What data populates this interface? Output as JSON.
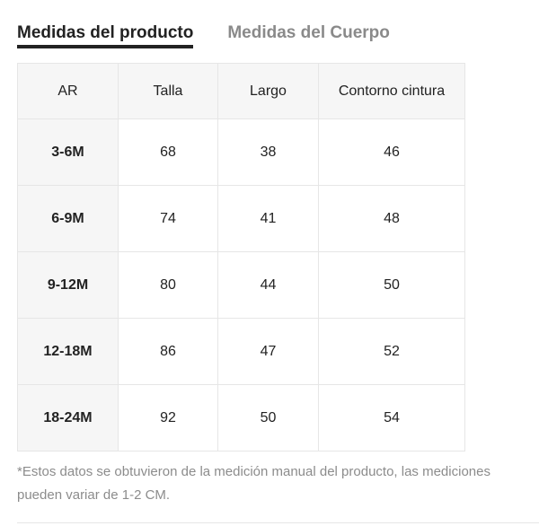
{
  "tabs": [
    {
      "label": "Medidas del producto",
      "active": true
    },
    {
      "label": "Medidas del Cuerpo",
      "active": false
    }
  ],
  "table": {
    "headers": [
      "AR",
      "Talla",
      "Largo",
      "Contorno cintura"
    ],
    "rows": [
      [
        "3-6M",
        "68",
        "38",
        "46"
      ],
      [
        "6-9M",
        "74",
        "41",
        "48"
      ],
      [
        "9-12M",
        "80",
        "44",
        "50"
      ],
      [
        "12-18M",
        "86",
        "47",
        "52"
      ],
      [
        "18-24M",
        "92",
        "50",
        "54"
      ]
    ]
  },
  "note": "*Estos datos se obtuvieron de la medición manual del producto, las mediciones pueden variar de 1-2 CM.",
  "colors": {
    "text": "#222222",
    "inactive_tab": "#8a8a8a",
    "note": "#8c8c8c",
    "header_bg": "#f6f6f6",
    "border": "#e6e6e6"
  }
}
